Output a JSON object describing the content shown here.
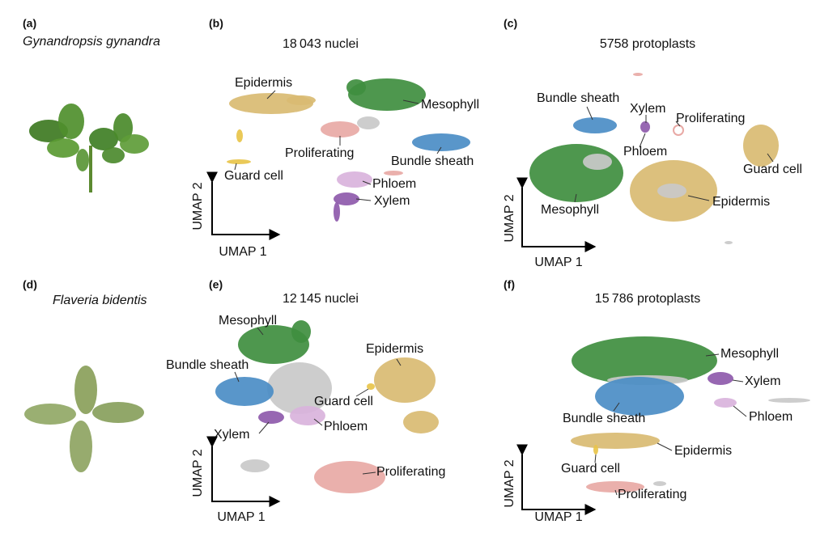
{
  "panels": [
    {
      "letter": "(a)",
      "species": "Gynandropsis gynandra"
    },
    {
      "letter": "(b)",
      "title": "18 043 nuclei",
      "x_label": "UMAP 1",
      "y_label": "UMAP 2",
      "clusters": [
        "Epidermis",
        "Mesophyll",
        "Proliferating",
        "Bundle sheath",
        "Guard cell",
        "Phloem",
        "Xylem"
      ]
    },
    {
      "letter": "(c)",
      "title": "5758 protoplasts",
      "x_label": "UMAP 1",
      "y_label": "UMAP 2",
      "clusters": [
        "Bundle sheath",
        "Xylem",
        "Proliferating",
        "Phloem",
        "Guard cell",
        "Mesophyll",
        "Epidermis"
      ]
    },
    {
      "letter": "(d)",
      "species": "Flaveria bidentis"
    },
    {
      "letter": "(e)",
      "title": "12 145 nuclei",
      "x_label": "UMAP 1",
      "y_label": "UMAP 2",
      "clusters": [
        "Mesophyll",
        "Bundle sheath",
        "Epidermis",
        "Guard cell",
        "Xylem",
        "Phloem",
        "Proliferating"
      ]
    },
    {
      "letter": "(f)",
      "title": "15 786 protoplasts",
      "x_label": "UMAP 1",
      "y_label": "UMAP 2",
      "clusters": [
        "Mesophyll",
        "Xylem",
        "Bundle sheath",
        "Phloem",
        "Epidermis",
        "Guard cell",
        "Proliferating"
      ]
    }
  ]
}
